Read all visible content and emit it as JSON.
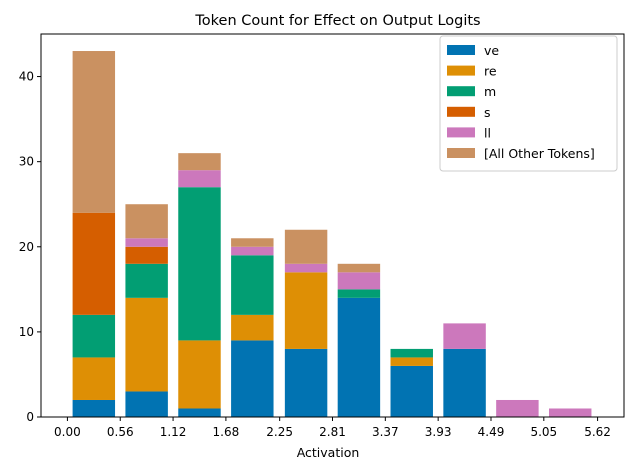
{
  "chart_data": {
    "type": "bar",
    "stacked": true,
    "title": "Token Count for Effect on Output Logits",
    "xlabel": "Activation",
    "ylabel": "",
    "xlim": [
      -0.28,
      5.9
    ],
    "ylim": [
      0,
      45
    ],
    "bar_width": 0.45,
    "x": [
      0.28,
      0.84,
      1.4,
      1.96,
      2.53,
      3.09,
      3.65,
      4.21,
      4.77,
      5.33
    ],
    "xticks": [
      "0.00",
      "0.56",
      "1.12",
      "1.68",
      "2.25",
      "2.81",
      "3.37",
      "3.93",
      "4.49",
      "5.05",
      "5.62"
    ],
    "xtick_values": [
      0.0,
      0.56,
      1.12,
      1.68,
      2.25,
      2.81,
      3.37,
      3.93,
      4.49,
      5.05,
      5.62
    ],
    "yticks": [
      0,
      10,
      20,
      30,
      40
    ],
    "grid": false,
    "legend_position": "top-right",
    "series": [
      {
        "name": "ve",
        "color": "#0173b2",
        "values": [
          2,
          3,
          1,
          9,
          8,
          14,
          6,
          8,
          0,
          0
        ]
      },
      {
        "name": "re",
        "color": "#de8f05",
        "values": [
          5,
          11,
          8,
          3,
          9,
          0,
          1,
          0,
          0,
          0
        ]
      },
      {
        "name": "m",
        "color": "#029e73",
        "values": [
          5,
          4,
          18,
          7,
          0,
          1,
          1,
          0,
          0,
          0
        ]
      },
      {
        "name": "s",
        "color": "#d55e00",
        "values": [
          12,
          2,
          0,
          0,
          0,
          0,
          0,
          0,
          0,
          0
        ]
      },
      {
        "name": "ll",
        "color": "#cc78bc",
        "values": [
          0,
          1,
          2,
          1,
          1,
          2,
          0,
          3,
          2,
          1
        ]
      },
      {
        "name": "[All Other Tokens]",
        "color": "#ca9161",
        "values": [
          19,
          4,
          2,
          1,
          4,
          1,
          0,
          0,
          0,
          0
        ]
      }
    ]
  }
}
